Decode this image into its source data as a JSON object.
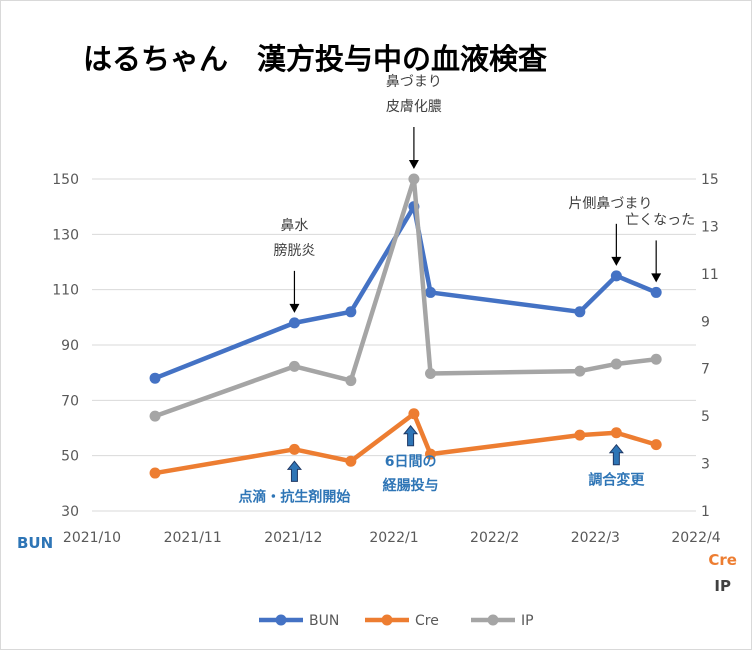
{
  "chart_data": {
    "type": "line",
    "title": "はるちゃん　漢方投与中の血液検査",
    "x_ticks": [
      "2021/10",
      "2021/11",
      "2021/12",
      "2022/1",
      "2022/2",
      "2022/3",
      "2022/4"
    ],
    "xlim": [
      "2021-10-01",
      "2022-04-01"
    ],
    "y_left": {
      "label": "BUN",
      "ylim": [
        30,
        150
      ],
      "ticks": [
        30,
        50,
        70,
        90,
        110,
        130,
        150
      ]
    },
    "y_right": {
      "label_cre": "Cre",
      "label_ip": "IP",
      "ylim": [
        1,
        15
      ],
      "ticks": [
        1,
        3,
        5,
        7,
        9,
        11,
        13,
        15
      ]
    },
    "dates": [
      "2021-10-20",
      "2021-12-01",
      "2021-12-18",
      "2022-01-06",
      "2022-01-11",
      "2022-02-25",
      "2022-03-08",
      "2022-03-20"
    ],
    "series": [
      {
        "name": "BUN",
        "axis": "left",
        "color": "#4472c4",
        "values": [
          78,
          98,
          102,
          140,
          109,
          102,
          115,
          109
        ]
      },
      {
        "name": "Cre",
        "axis": "right",
        "color": "#ed7d31",
        "values": [
          2.6,
          3.6,
          3.1,
          5.1,
          3.4,
          4.2,
          4.3,
          3.8
        ]
      },
      {
        "name": "IP",
        "axis": "right",
        "color": "#a5a5a5",
        "values": [
          5.0,
          7.1,
          6.5,
          15.0,
          6.8,
          6.9,
          7.2,
          7.4
        ]
      }
    ],
    "annotations": [
      {
        "lines": [
          "鼻水",
          "膀胱炎"
        ],
        "arrow": "down",
        "color": "#404040",
        "anchor_date": "2021-12-01"
      },
      {
        "lines": [
          "鼻づまり",
          "皮膚化膿"
        ],
        "arrow": "down",
        "color": "#404040",
        "anchor_date": "2022-01-06"
      },
      {
        "lines": [
          "片側鼻づまり"
        ],
        "arrow": "down",
        "color": "#404040",
        "anchor_date": "2022-03-08"
      },
      {
        "lines": [
          "亡くなった"
        ],
        "arrow": "down",
        "color": "#404040",
        "anchor_date": "2022-03-20"
      },
      {
        "lines": [
          "点滴・抗生剤開始"
        ],
        "arrow": "up",
        "color": "#2e75b6",
        "anchor_date": "2021-12-01"
      },
      {
        "lines": [
          "6日間の",
          "経腸投与"
        ],
        "arrow": "up",
        "color": "#2e75b6",
        "anchor_date": "2022-01-05"
      },
      {
        "lines": [
          "調合変更"
        ],
        "arrow": "up",
        "color": "#2e75b6",
        "anchor_date": "2022-03-08"
      }
    ],
    "legend_position": "bottom",
    "grid": true
  }
}
